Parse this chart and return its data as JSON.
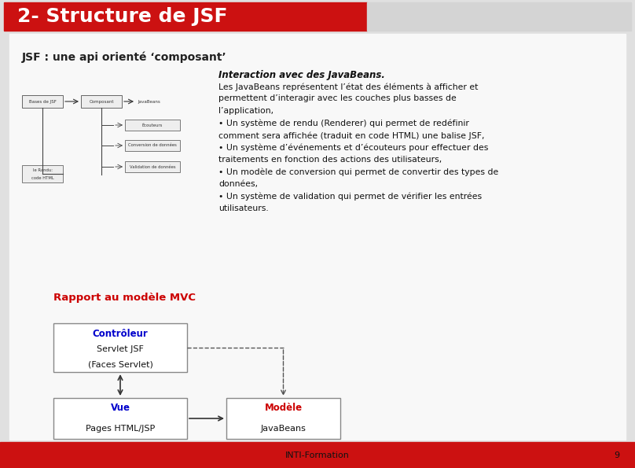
{
  "title": "2- Structure de JSF",
  "subtitle": "JSF : une api orienté ‘composant’",
  "title_bg_color": "#cc1111",
  "title_text_color": "#ffffff",
  "footer_bg_color": "#cc1111",
  "footer_text": "INTI-Formation",
  "footer_number": "9",
  "main_bg_color": "#e0e0e0",
  "content_bg_color": "#f0f0f0",
  "interaction_title": "Interaction avec des JavaBeans.",
  "interaction_body": [
    "Les JavaBeans représentent l’état des éléments à afficher et",
    "permettent d’interagir avec les couches plus basses de",
    "l’application,",
    "• Un système de rendu (Renderer) qui permet de redéfinir",
    "comment sera affichée (traduit en code HTML) une balise JSF,",
    "• Un système d’événements et d’écouteurs pour effectuer des",
    "traitements en fonction des actions des utilisateurs,",
    "• Un modèle de conversion qui permet de convertir des types de",
    "données,",
    "• Un système de validation qui permet de vérifier les entrées",
    "utilisateurs."
  ],
  "mvc_title": "Rapport au modèle MVC",
  "mvc_title_color": "#cc0000",
  "controleur_label": "Contrôleur",
  "controleur_color": "#0000cc",
  "vue_label": "Vue",
  "vue_color": "#0000cc",
  "vue_sub": "Pages HTML/JSP",
  "modele_label": "Modèle",
  "modele_color": "#cc0000",
  "modele_sub": "JavaBeans"
}
